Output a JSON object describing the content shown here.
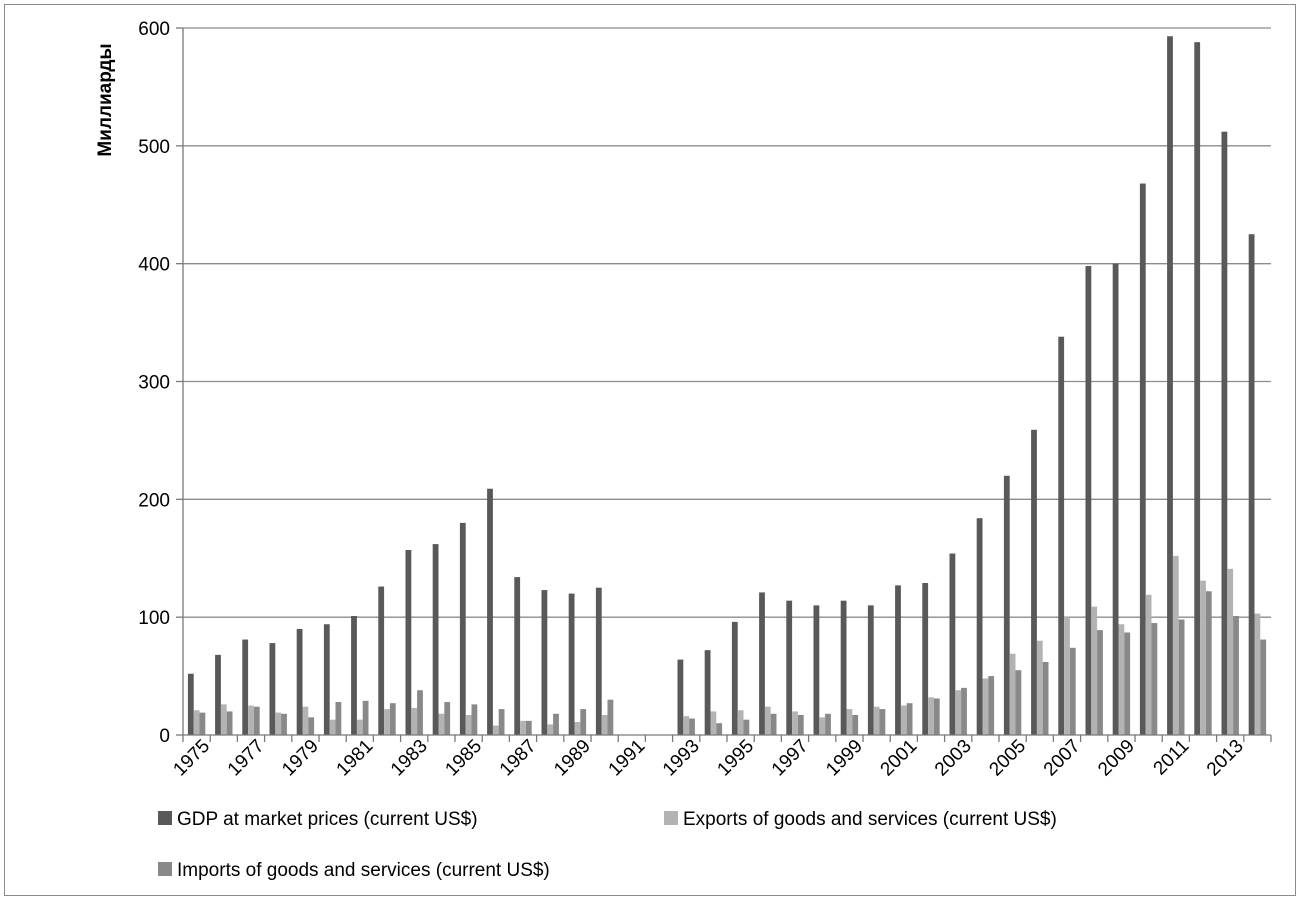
{
  "chart_data": {
    "type": "bar",
    "title": "",
    "xlabel": "",
    "ylabel": "Миллиарды",
    "ylim": [
      0,
      600
    ],
    "yticks": [
      0,
      100,
      200,
      300,
      400,
      500,
      600
    ],
    "grid": true,
    "legend_position": "bottom",
    "categories": [
      "1975",
      "1976",
      "1977",
      "1978",
      "1979",
      "1980",
      "1981",
      "1982",
      "1983",
      "1984",
      "1985",
      "1986",
      "1987",
      "1988",
      "1989",
      "1990",
      "1991",
      "1992",
      "1993",
      "1994",
      "1995",
      "1996",
      "1997",
      "1998",
      "1999",
      "2000",
      "2001",
      "2002",
      "2003",
      "2004",
      "2005",
      "2006",
      "2007",
      "2008",
      "2009",
      "2010",
      "2011",
      "2012",
      "2013",
      "2014"
    ],
    "category_labels": [
      "1975",
      "",
      "1977",
      "",
      "1979",
      "",
      "1981",
      "",
      "1983",
      "",
      "1985",
      "",
      "1987",
      "",
      "1989",
      "",
      "1991",
      "",
      "1993",
      "",
      "1995",
      "",
      "1997",
      "",
      "1999",
      "",
      "2001",
      "",
      "2003",
      "",
      "2005",
      "",
      "2007",
      "",
      "2009",
      "",
      "2011",
      "",
      "2013",
      ""
    ],
    "series": [
      {
        "name": "GDP at market prices (current US$)",
        "color": "#595959",
        "values": [
          52,
          68,
          81,
          78,
          90,
          94,
          101,
          126,
          157,
          162,
          180,
          209,
          134,
          123,
          120,
          125,
          null,
          null,
          64,
          72,
          96,
          121,
          114,
          110,
          114,
          110,
          127,
          129,
          154,
          184,
          220,
          259,
          338,
          398,
          400,
          468,
          593,
          588,
          512,
          425
        ]
      },
      {
        "name": "Exports of goods and services (current US$)",
        "color": "#b3b3b3",
        "values": [
          21,
          26,
          25,
          19,
          24,
          13,
          13,
          22,
          23,
          18,
          17,
          8,
          12,
          9,
          11,
          17,
          null,
          null,
          16,
          20,
          21,
          24,
          20,
          15,
          22,
          24,
          25,
          32,
          38,
          48,
          69,
          80,
          100,
          109,
          94,
          119,
          152,
          131,
          141,
          103
        ]
      },
      {
        "name": "Imports of goods and services (current US$)",
        "color": "#898989",
        "values": [
          19,
          20,
          24,
          18,
          15,
          28,
          29,
          27,
          38,
          28,
          26,
          22,
          12,
          18,
          22,
          30,
          null,
          null,
          14,
          10,
          13,
          18,
          17,
          18,
          17,
          22,
          27,
          31,
          40,
          50,
          55,
          62,
          74,
          89,
          87,
          95,
          98,
          122,
          101,
          81
        ]
      }
    ]
  }
}
